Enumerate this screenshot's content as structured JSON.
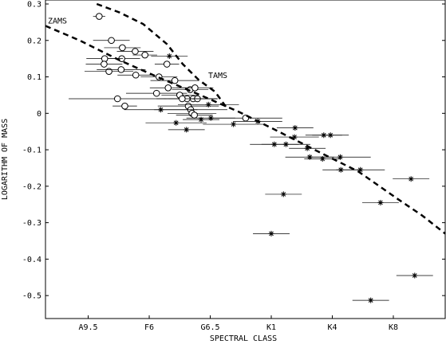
{
  "chart_data": {
    "type": "scatter",
    "x_label": "SPECTRAL CLASS",
    "y_label": "LOGARITHM OF MASS",
    "xlim": [
      -0.7,
      5.85
    ],
    "ylim": [
      -0.563,
      0.3
    ],
    "xticks": [
      {
        "value": 0,
        "label": "A9.5"
      },
      {
        "value": 1,
        "label": "F6"
      },
      {
        "value": 2,
        "label": "G6.5"
      },
      {
        "value": 3,
        "label": "K1"
      },
      {
        "value": 4,
        "label": "K4"
      },
      {
        "value": 5,
        "label": "K8"
      }
    ],
    "yticks": [
      0.3,
      0.2,
      0.1,
      0,
      -0.1,
      -0.2,
      -0.3,
      -0.4,
      -0.5
    ],
    "color": "#000000",
    "series": [
      {
        "marker": "circle",
        "x": [
          0.18,
          0.38,
          0.56,
          0.55,
          0.77,
          0.93,
          0.27,
          0.26,
          0.34,
          0.54,
          0.78,
          1.16,
          1.42,
          1.31,
          1.29,
          1.12,
          1.5,
          1.67,
          1.75,
          1.72,
          1.79,
          1.62,
          1.54,
          1.64,
          1.68,
          1.7,
          1.74,
          2.58,
          0.48,
          0.6
        ],
        "y": [
          0.266,
          0.2,
          0.18,
          0.15,
          0.17,
          0.16,
          0.15,
          0.135,
          0.115,
          0.12,
          0.105,
          0.1,
          0.09,
          0.07,
          0.135,
          0.055,
          0.05,
          0.065,
          0.07,
          0.04,
          0.04,
          0.04,
          0.04,
          0.02,
          0.01,
          0.0,
          -0.005,
          -0.013,
          0.04,
          0.02
        ],
        "xerr": [
          0.1,
          0.3,
          0.3,
          0.3,
          0.3,
          0.2,
          0.3,
          0.3,
          0.4,
          0.4,
          0.3,
          0.3,
          0.4,
          0.3,
          0.2,
          0.5,
          0.3,
          0.3,
          0.3,
          0.4,
          0.3,
          0.5,
          0.3,
          0.5,
          0.6,
          0.4,
          0.3,
          0.6,
          0.8,
          0.2
        ]
      },
      {
        "marker": "asterisk",
        "x": [
          1.33,
          1.19,
          1.44,
          1.61,
          1.85,
          1.97,
          2.01,
          2.38,
          2.78,
          3.05,
          3.24,
          3.39,
          3.38,
          3.59,
          3.63,
          3.84,
          3.86,
          3.97,
          4.13,
          4.14,
          4.46,
          4.79,
          3.2,
          3.0,
          5.29,
          5.35,
          4.63
        ],
        "y": [
          0.157,
          0.01,
          -0.026,
          -0.045,
          -0.017,
          0.024,
          -0.013,
          -0.03,
          -0.022,
          -0.085,
          -0.085,
          -0.04,
          -0.065,
          -0.096,
          -0.12,
          -0.125,
          -0.06,
          -0.06,
          -0.12,
          -0.155,
          -0.155,
          -0.245,
          -0.222,
          -0.33,
          -0.18,
          -0.445,
          -0.513
        ],
        "xerr": [
          0.3,
          0.6,
          0.5,
          0.3,
          0.3,
          0.5,
          0.4,
          0.5,
          0.4,
          0.4,
          0.4,
          0.3,
          0.4,
          0.3,
          0.4,
          0.3,
          0.3,
          0.3,
          0.5,
          0.3,
          0.4,
          0.3,
          0.3,
          0.3,
          0.3,
          0.3,
          0.3
        ]
      }
    ],
    "lines": [
      {
        "label": "ZAMS",
        "x": [
          -0.7,
          -0.14,
          0.51,
          1.16,
          1.81,
          2.47,
          3.12,
          3.77,
          4.43,
          5.08,
          5.47,
          5.85
        ],
        "y": [
          0.24,
          0.2,
          0.146,
          0.098,
          0.052,
          0.004,
          -0.05,
          -0.105,
          -0.16,
          -0.236,
          -0.28,
          -0.33
        ]
      },
      {
        "label": "TAMS",
        "x": [
          0.14,
          0.51,
          0.9,
          1.29,
          1.55,
          1.81,
          2.08,
          2.27
        ],
        "y": [
          0.3,
          0.277,
          0.245,
          0.19,
          0.135,
          0.092,
          0.059,
          0.015
        ]
      }
    ]
  }
}
